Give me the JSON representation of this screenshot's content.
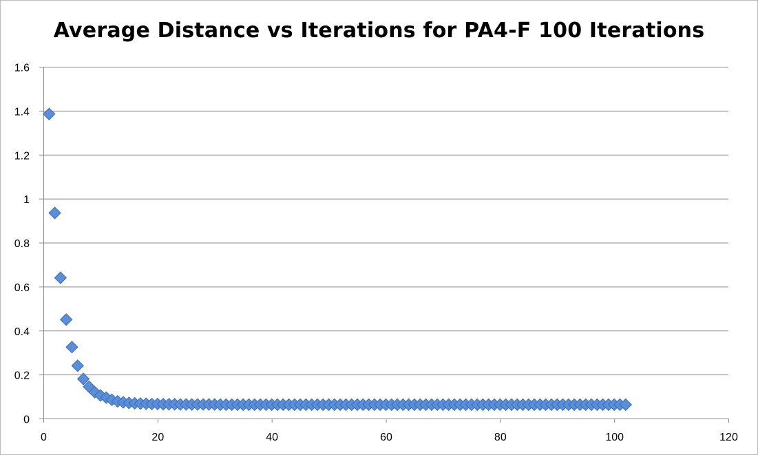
{
  "chart_data": {
    "type": "scatter",
    "title": "Average Distance vs Iterations for PA4-F 100 Iterations",
    "xlabel": "",
    "ylabel": "",
    "xlim": [
      0,
      120
    ],
    "ylim": [
      0,
      1.6
    ],
    "x_ticks": [
      0,
      20,
      40,
      60,
      80,
      100,
      120
    ],
    "y_ticks": [
      0,
      0.2,
      0.4,
      0.6,
      0.8,
      1,
      1.2,
      1.4,
      1.6
    ],
    "x_tick_labels": [
      "0",
      "20",
      "40",
      "60",
      "80",
      "100",
      "120"
    ],
    "y_tick_labels": [
      "0",
      "0.2",
      "0.4",
      "0.6",
      "0.8",
      "1",
      "1.2",
      "1.4",
      "1.6"
    ],
    "grid": true,
    "legend": "none",
    "marker": "diamond",
    "colors": {
      "marker_fill": "#5b8ed6",
      "marker_stroke": "#3c6db6",
      "gridline": "#8c8c8c",
      "axis": "#8c8c8c"
    },
    "series": [
      {
        "x": [
          1,
          2,
          3,
          4,
          5,
          6,
          7,
          8,
          9,
          10,
          11,
          12,
          13,
          14,
          15,
          16,
          17,
          18,
          19,
          20,
          21,
          22,
          23,
          24,
          25,
          26,
          27,
          28,
          29,
          30,
          31,
          32,
          33,
          34,
          35,
          36,
          37,
          38,
          39,
          40,
          41,
          42,
          43,
          44,
          45,
          46,
          47,
          48,
          49,
          50,
          51,
          52,
          53,
          54,
          55,
          56,
          57,
          58,
          59,
          60,
          61,
          62,
          63,
          64,
          65,
          66,
          67,
          68,
          69,
          70,
          71,
          72,
          73,
          74,
          75,
          76,
          77,
          78,
          79,
          80,
          81,
          82,
          83,
          84,
          85,
          86,
          87,
          88,
          89,
          90,
          91,
          92,
          93,
          94,
          95,
          96,
          97,
          98,
          99,
          100,
          101,
          102
        ],
        "y": [
          1.385,
          0.935,
          0.64,
          0.45,
          0.325,
          0.24,
          0.18,
          0.145,
          0.12,
          0.105,
          0.095,
          0.085,
          0.078,
          0.074,
          0.071,
          0.069,
          0.068,
          0.067,
          0.066,
          0.066,
          0.065,
          0.065,
          0.065,
          0.064,
          0.064,
          0.064,
          0.064,
          0.064,
          0.064,
          0.064,
          0.063,
          0.063,
          0.063,
          0.063,
          0.063,
          0.063,
          0.063,
          0.063,
          0.063,
          0.063,
          0.063,
          0.063,
          0.063,
          0.063,
          0.063,
          0.063,
          0.063,
          0.063,
          0.063,
          0.063,
          0.063,
          0.063,
          0.063,
          0.063,
          0.063,
          0.063,
          0.063,
          0.063,
          0.063,
          0.063,
          0.063,
          0.063,
          0.063,
          0.063,
          0.063,
          0.063,
          0.063,
          0.063,
          0.063,
          0.063,
          0.063,
          0.063,
          0.063,
          0.063,
          0.063,
          0.063,
          0.063,
          0.063,
          0.063,
          0.063,
          0.063,
          0.063,
          0.063,
          0.063,
          0.063,
          0.063,
          0.063,
          0.063,
          0.063,
          0.063,
          0.063,
          0.063,
          0.063,
          0.063,
          0.063,
          0.063,
          0.063,
          0.063,
          0.063,
          0.063,
          0.063,
          0.063
        ]
      }
    ]
  }
}
